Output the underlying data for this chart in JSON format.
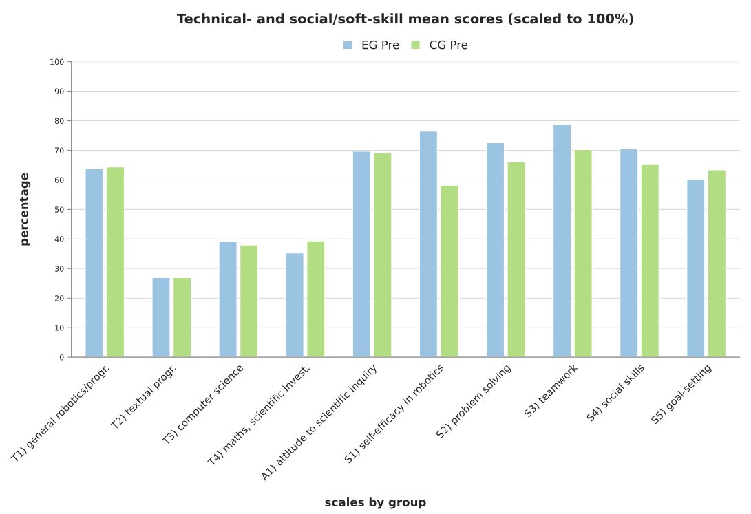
{
  "chart_data": {
    "type": "bar",
    "title": "Technical- and social/soft-skill mean scores (scaled to 100%)",
    "xlabel": "scales by group",
    "ylabel": "percentage",
    "categories": [
      "T1) general robotics/progr.",
      "T2) textual progr.",
      "T3) computer science",
      "T4) maths, scientific invest.",
      "A1) attitude to scientific inquiry",
      "S1) self-efficacy in robotics",
      "S2) problem solving",
      "S3) teamwork",
      "S4) social skills",
      "S5) goal-setting"
    ],
    "series": [
      {
        "name": "EG Pre",
        "color": "#9bc4e3",
        "values": [
          63.8,
          27.0,
          39.2,
          35.3,
          69.7,
          76.5,
          72.6,
          78.8,
          70.5,
          60.2
        ]
      },
      {
        "name": "CG Pre",
        "color": "#b3dd83",
        "values": [
          64.4,
          27.0,
          38.0,
          39.4,
          69.2,
          58.2,
          66.1,
          70.3,
          65.2,
          63.4
        ]
      }
    ],
    "ylim": [
      0,
      100
    ],
    "yticks": [
      0,
      10,
      20,
      30,
      40,
      50,
      60,
      70,
      80,
      90,
      100
    ],
    "grid": "y",
    "legend": "top"
  }
}
